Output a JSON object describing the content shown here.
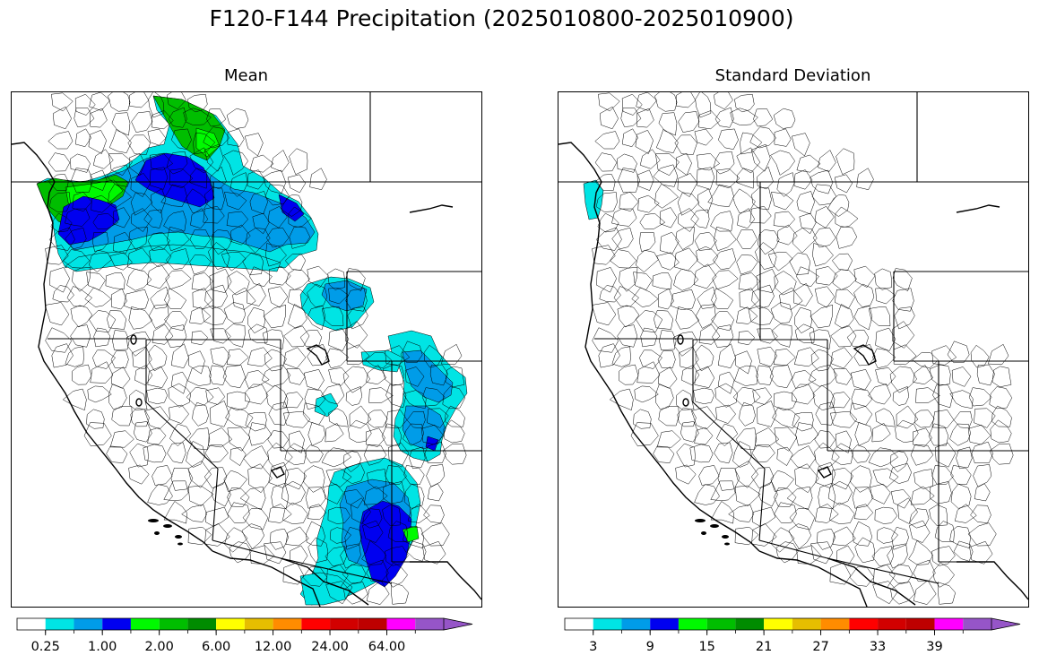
{
  "figure": {
    "title": "F120-F144 Precipitation (2025010800-2025010900)"
  },
  "panels": [
    {
      "title": "Mean",
      "colorbar": {
        "colors": [
          "#ffffff",
          "#00e4e4",
          "#009ce8",
          "#0000f0",
          "#00fa00",
          "#00be00",
          "#008c00",
          "#ffff00",
          "#e6be00",
          "#ff8c00",
          "#ff0000",
          "#d20000",
          "#be0000",
          "#ff00ff",
          "#9655c8"
        ],
        "tick_labels": [
          "0.25",
          "1.00",
          "2.00",
          "6.00",
          "12.00",
          "24.00",
          "64.00"
        ]
      }
    },
    {
      "title": "Standard Deviation",
      "colorbar": {
        "colors": [
          "#ffffff",
          "#00e4e4",
          "#009ce8",
          "#0000f0",
          "#00fa00",
          "#00be00",
          "#008c00",
          "#ffff00",
          "#e6be00",
          "#ff8c00",
          "#ff0000",
          "#d20000",
          "#be0000",
          "#ff00ff",
          "#9655c8"
        ],
        "tick_labels": [
          "3",
          "9",
          "15",
          "21",
          "27",
          "33",
          "39"
        ]
      }
    }
  ]
}
